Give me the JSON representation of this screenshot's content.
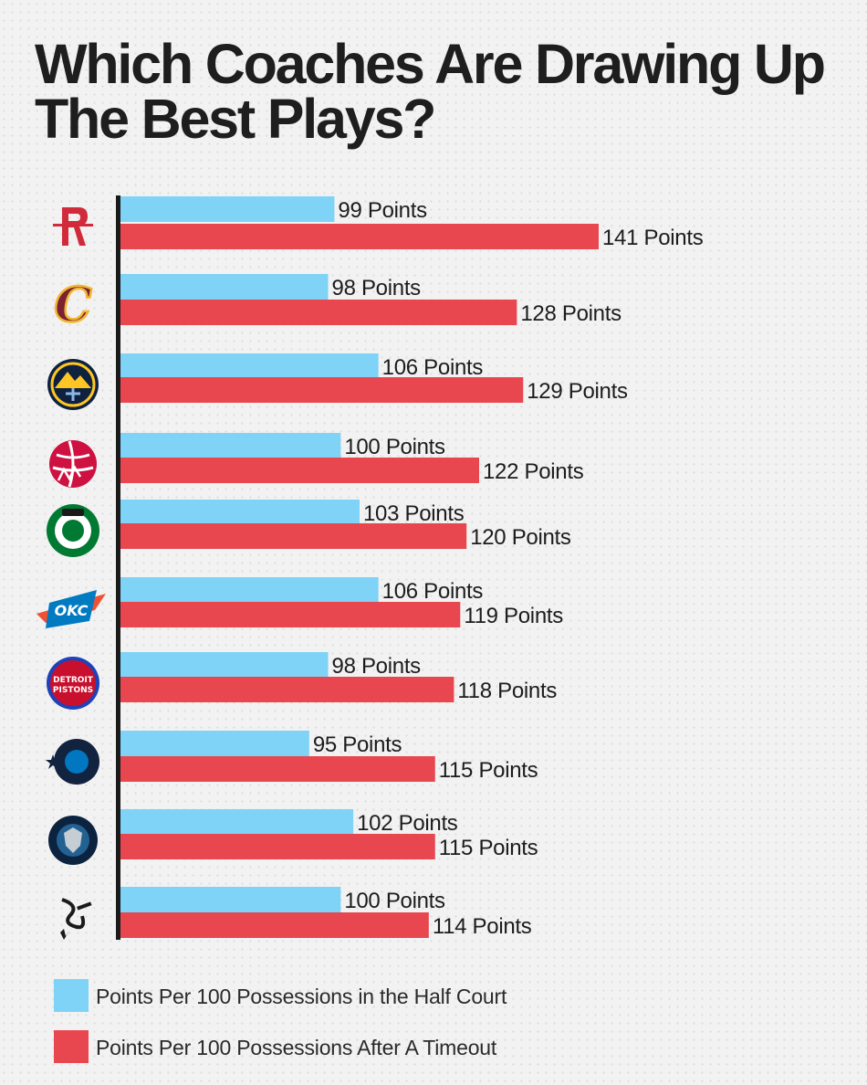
{
  "header": {
    "title": "Which Coaches Are Drawing Up The Best Plays?"
  },
  "colors": {
    "half_court": "#7fd3f7",
    "after_timeout": "#e8474f",
    "axis": "#1a1a1a"
  },
  "chart_data": {
    "type": "bar",
    "orientation": "horizontal",
    "title": "Which Coaches Are Drawing Up The Best Plays?",
    "categories": [
      "Houston Rockets",
      "Cleveland Cavaliers",
      "Denver Nuggets",
      "Toronto Raptors",
      "Boston Celtics",
      "Oklahoma City Thunder",
      "Detroit Pistons",
      "Orlando Magic",
      "Minnesota Timberwolves",
      "San Antonio Spurs"
    ],
    "category_icons": [
      "rockets-logo-icon",
      "cavaliers-logo-icon",
      "nuggets-logo-icon",
      "raptors-logo-icon",
      "celtics-logo-icon",
      "thunder-logo-icon",
      "pistons-logo-icon",
      "magic-logo-icon",
      "timberwolves-logo-icon",
      "spurs-logo-icon"
    ],
    "series": [
      {
        "name": "Points Per 100 Possessions in the Half Court",
        "values": [
          99,
          98,
          106,
          100,
          103,
          106,
          98,
          95,
          102,
          100
        ],
        "labels": [
          "99 Points",
          "98 Points",
          "106 Points",
          "100 Points",
          "103 Points",
          "106 Points",
          "98 Points",
          "95 Points",
          "102 Points",
          "100 Points"
        ]
      },
      {
        "name": "Points Per 100 Possessions After A Timeout",
        "values": [
          141,
          128,
          129,
          122,
          120,
          119,
          118,
          115,
          115,
          114
        ],
        "labels": [
          "141 Points",
          "128 Points",
          "129 Points",
          "122 Points",
          "120 Points",
          "119 Points",
          "118 Points",
          "115 Points",
          "115 Points",
          "114 Points"
        ]
      }
    ],
    "xlim": [
      65,
      141
    ],
    "grid": false,
    "legend": "bottom-left",
    "legend_entries": [
      "Points Per 100 Possessions in the Half Court",
      "Points Per 100 Possessions After A Timeout"
    ]
  }
}
